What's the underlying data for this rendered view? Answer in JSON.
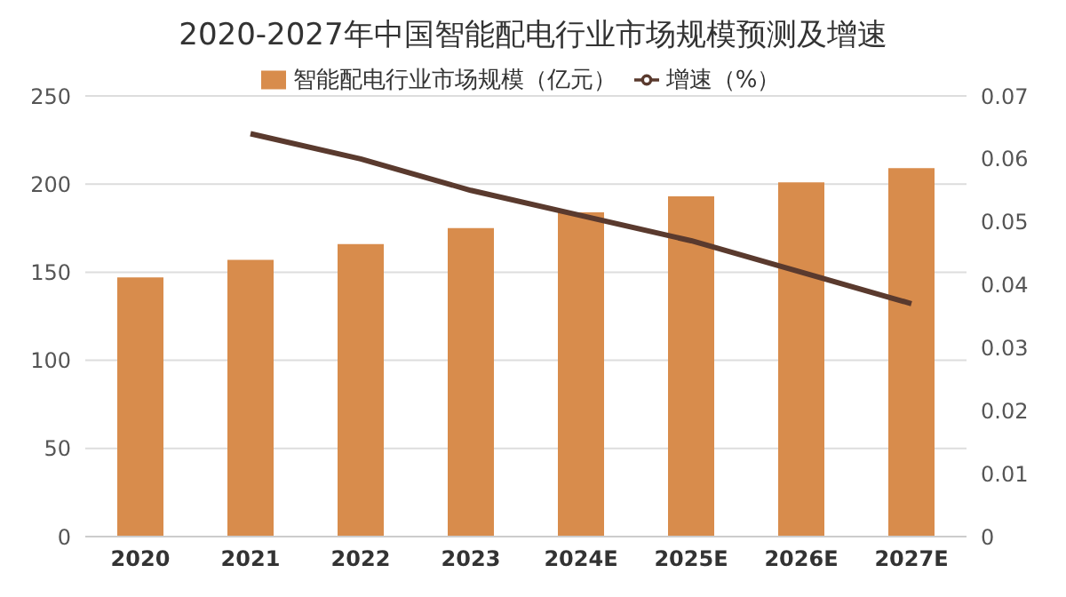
{
  "chart_data": {
    "type": "bar",
    "title": "2020-2027年中国智能配电行业市场规模预测及增速",
    "categories": [
      "2020",
      "2021",
      "2022",
      "2023",
      "2024E",
      "2025E",
      "2026E",
      "2027E"
    ],
    "series": [
      {
        "name": "智能配电行业市场规模（亿元）",
        "color": "#d88c4c",
        "values": [
          147,
          157,
          166,
          175,
          184,
          193,
          201,
          209
        ]
      },
      {
        "name": "增速（%）",
        "type": "line",
        "axis": "y2",
        "color": "#5a3a2e",
        "marker": "none",
        "values": [
          null,
          0.064,
          0.06,
          0.055,
          0.051,
          0.047,
          0.042,
          0.037
        ]
      }
    ],
    "ylim": [
      0,
      250
    ],
    "yticks": [
      0,
      50,
      100,
      150,
      200,
      250
    ],
    "y2lim": [
      0,
      0.07
    ],
    "y2ticks": [
      {
        "value": 0,
        "label": "0"
      },
      {
        "value": 0.01,
        "label": "0.01"
      },
      {
        "value": 0.02,
        "label": "0.02"
      },
      {
        "value": 0.03,
        "label": "0.03"
      },
      {
        "value": 0.04,
        "label": "0.04"
      },
      {
        "value": 0.05,
        "label": "0.05"
      },
      {
        "value": 0.06,
        "label": "0.06"
      },
      {
        "value": 0.07,
        "label": "0.07"
      }
    ],
    "grid": "y",
    "legend": "top"
  }
}
